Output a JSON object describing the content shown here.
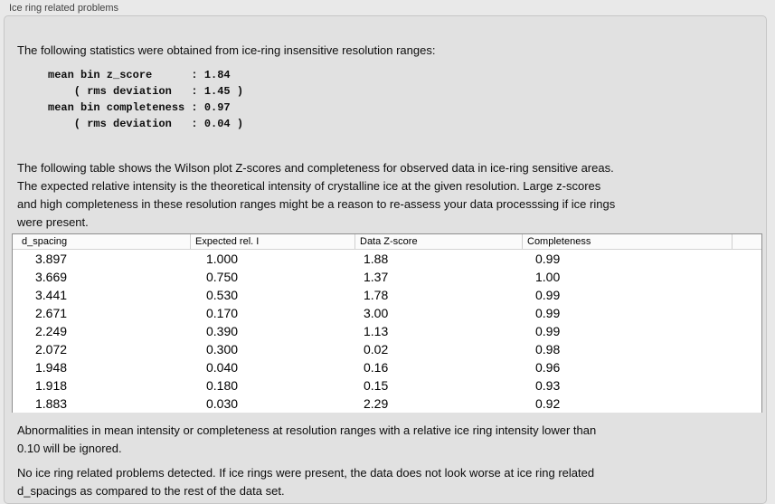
{
  "panel": {
    "title": "Ice ring related problems"
  },
  "intro": {
    "text": "The following statistics were obtained from ice-ring insensitive resolution ranges:"
  },
  "stats": {
    "text": "mean bin z_score      : 1.84\n    ( rms deviation   : 1.45 )\nmean bin completeness : 0.97\n    ( rms deviation   : 0.04 )"
  },
  "description": {
    "text": "The following table shows the Wilson plot Z-scores and completeness for observed data in ice-ring sensitive areas.\nThe expected relative intensity is the theoretical intensity of crystalline ice at the given resolution. Large z-scores\nand high completeness in these resolution ranges might be a reason to re-assess your data processsing if ice rings\nwere present."
  },
  "table": {
    "columns": [
      "d_spacing",
      "Expected rel. I",
      "Data Z-score",
      "Completeness"
    ],
    "rows": [
      [
        "3.897",
        "1.000",
        "1.88",
        "0.99"
      ],
      [
        "3.669",
        "0.750",
        "1.37",
        "1.00"
      ],
      [
        "3.441",
        "0.530",
        "1.78",
        "0.99"
      ],
      [
        "2.671",
        "0.170",
        "3.00",
        "0.99"
      ],
      [
        "2.249",
        "0.390",
        "1.13",
        "0.99"
      ],
      [
        "2.072",
        "0.300",
        "0.02",
        "0.98"
      ],
      [
        "1.948",
        "0.040",
        "0.16",
        "0.96"
      ],
      [
        "1.918",
        "0.180",
        "0.15",
        "0.93"
      ],
      [
        "1.883",
        "0.030",
        "2.29",
        "0.92"
      ]
    ]
  },
  "notes": {
    "ignore_note": "Abnormalities in mean intensity or completeness at resolution ranges with a relative ice ring intensity lower than\n0.10 will be ignored.",
    "conclusion": "No ice ring related problems detected. If ice rings were present, the data does not look worse at ice ring related\nd_spacings as compared to the rest of the data set."
  },
  "colors": {
    "page_background": "#e9e9e9",
    "panel_background": "#e1e1e1",
    "table_background": "#ffffff",
    "text": "#0d0d0d"
  }
}
